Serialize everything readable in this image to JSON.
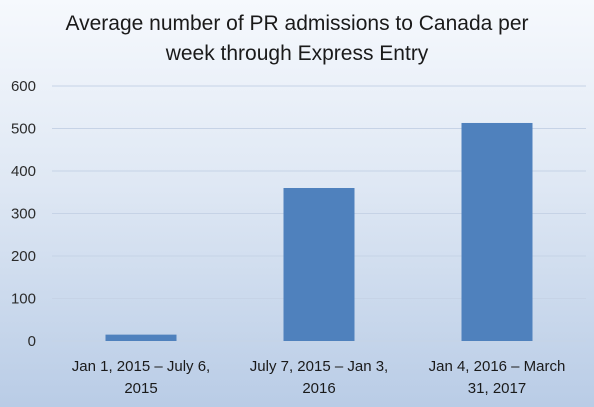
{
  "chart_data": {
    "type": "bar",
    "title": "Average number of PR admissions to Canada per\nweek through Express Entry",
    "categories": [
      [
        "Jan 1, 2015 – July 6,",
        "2015"
      ],
      [
        "July 7, 2015 – Jan 3,",
        "2016"
      ],
      [
        "Jan 4, 2016 – March",
        "31, 2017"
      ]
    ],
    "values": [
      15,
      360,
      513
    ],
    "ylim": [
      0,
      600
    ],
    "yticks": [
      0,
      100,
      200,
      300,
      400,
      500,
      600
    ],
    "grid": true,
    "legend": "none",
    "bar_color": "#4f81bd",
    "gridline_color": "#c6d3e6"
  }
}
